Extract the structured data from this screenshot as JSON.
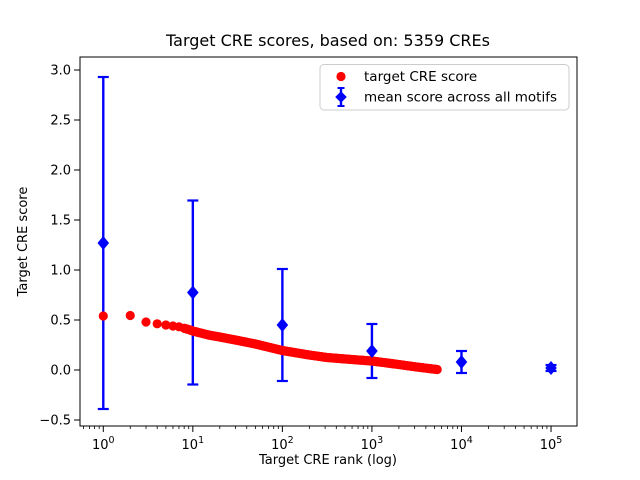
{
  "figure": {
    "background": "#ffffff"
  },
  "chart_data": {
    "type": "scatter",
    "title": "Target CRE scores, based on: 5359 CREs",
    "xlabel": "Target CRE rank (log)",
    "ylabel": "Target CRE score",
    "x_scale": "log",
    "grid": false,
    "xlim_log10": [
      -0.26,
      5.29
    ],
    "ylim": [
      -0.56,
      3.13
    ],
    "y_ticks": [
      {
        "value": -0.5,
        "label": "−0.5"
      },
      {
        "value": 0.0,
        "label": "0.0"
      },
      {
        "value": 0.5,
        "label": "0.5"
      },
      {
        "value": 1.0,
        "label": "1.0"
      },
      {
        "value": 1.5,
        "label": "1.5"
      },
      {
        "value": 2.0,
        "label": "2.0"
      },
      {
        "value": 2.5,
        "label": "2.5"
      },
      {
        "value": 3.0,
        "label": "3.0"
      }
    ],
    "x_ticks": [
      {
        "log10": 0,
        "base": "10",
        "exp": "0"
      },
      {
        "log10": 1,
        "base": "10",
        "exp": "1"
      },
      {
        "log10": 2,
        "base": "10",
        "exp": "2"
      },
      {
        "log10": 3,
        "base": "10",
        "exp": "3"
      },
      {
        "log10": 4,
        "base": "10",
        "exp": "4"
      },
      {
        "log10": 5,
        "base": "10",
        "exp": "5"
      }
    ],
    "series": [
      {
        "name": "target CRE score",
        "color": "#ff0000",
        "marker": "circle",
        "n_points": 5359,
        "rank_range": [
          1,
          5359
        ],
        "profile_log10rank_vs_score": [
          [
            0.0,
            0.54
          ],
          [
            0.301,
            0.545
          ],
          [
            0.477,
            0.48
          ],
          [
            0.602,
            0.462
          ],
          [
            0.699,
            0.45
          ],
          [
            0.778,
            0.44
          ],
          [
            0.845,
            0.432
          ],
          [
            0.954,
            0.405
          ],
          [
            1.0,
            0.39
          ],
          [
            1.176,
            0.35
          ],
          [
            1.301,
            0.33
          ],
          [
            1.477,
            0.3
          ],
          [
            1.699,
            0.26
          ],
          [
            2.0,
            0.195
          ],
          [
            2.301,
            0.15
          ],
          [
            2.5,
            0.125
          ],
          [
            2.778,
            0.105
          ],
          [
            3.0,
            0.09
          ],
          [
            3.301,
            0.055
          ],
          [
            3.5,
            0.03
          ],
          [
            3.729,
            0.005
          ]
        ]
      },
      {
        "name": "mean score across all motifs",
        "color": "#0000ff",
        "marker": "diamond",
        "x": [
          1,
          10,
          100,
          1000,
          10000,
          100000
        ],
        "y": [
          1.27,
          0.775,
          0.45,
          0.19,
          0.08,
          0.02
        ],
        "yerr": [
          1.66,
          0.92,
          0.56,
          0.27,
          0.11,
          0.03
        ]
      }
    ],
    "legend": {
      "position": "upper right"
    }
  }
}
